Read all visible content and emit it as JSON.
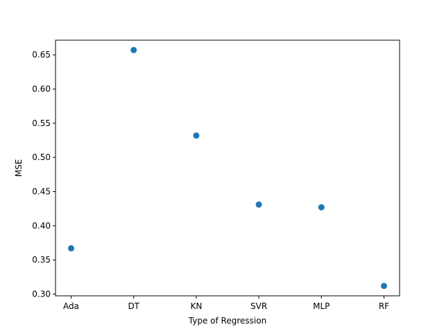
{
  "chart_data": {
    "type": "scatter",
    "title": "",
    "xlabel": "Type of Regression",
    "ylabel": "MSE",
    "categories": [
      "Ada",
      "DT",
      "KN",
      "SVR",
      "MLP",
      "RF"
    ],
    "values": [
      0.367,
      0.657,
      0.532,
      0.431,
      0.427,
      0.312
    ],
    "ylim": [
      0.2975,
      0.6715
    ],
    "yticks": [
      0.3,
      0.35,
      0.4,
      0.45,
      0.5,
      0.55,
      0.6,
      0.65
    ],
    "ytick_labels": [
      "0.30",
      "0.35",
      "0.40",
      "0.45",
      "0.50",
      "0.55",
      "0.60",
      "0.65"
    ],
    "grid": false,
    "legend": "none",
    "marker_color": "#1f77b4"
  }
}
